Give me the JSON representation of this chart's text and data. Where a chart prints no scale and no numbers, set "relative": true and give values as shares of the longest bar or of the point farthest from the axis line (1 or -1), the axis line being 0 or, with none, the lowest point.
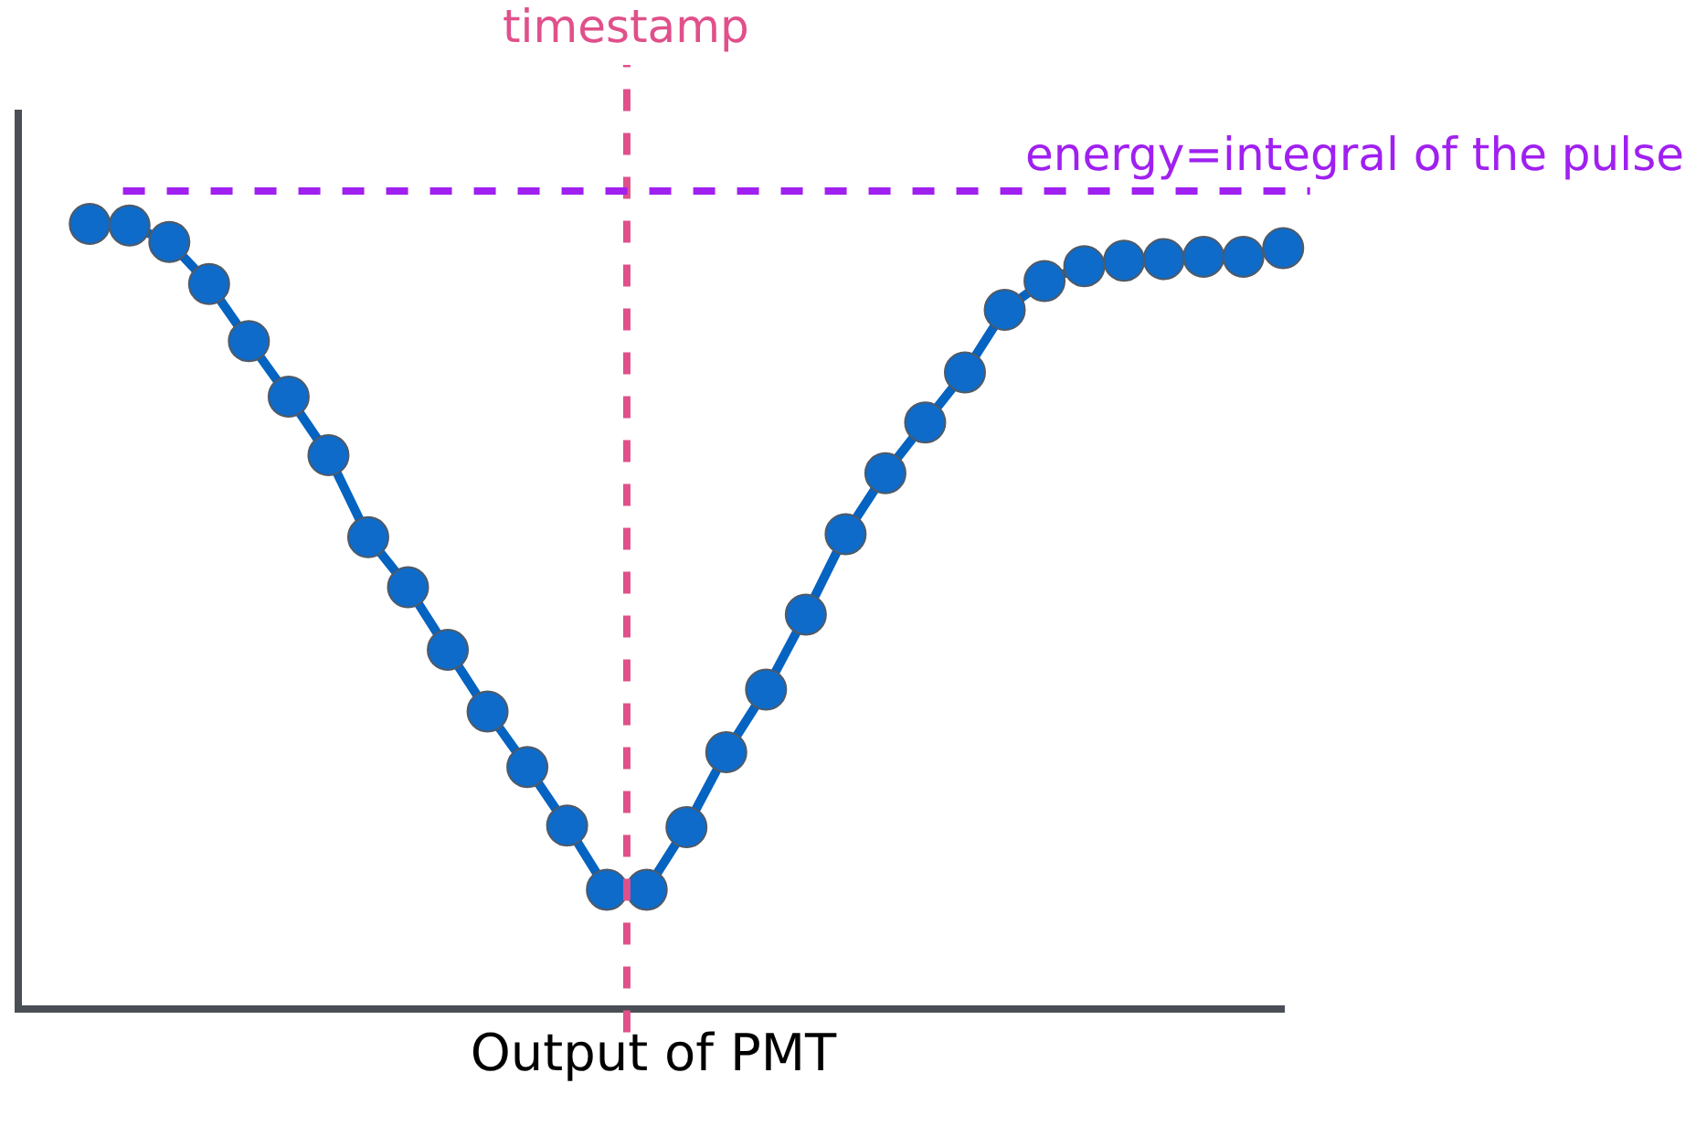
{
  "chart_data": {
    "type": "line",
    "relative": true,
    "xlabel": "Output of PMT",
    "tick_labels": false,
    "annotations": [
      "timestamp"
    ],
    "marker": "circle",
    "line_style": "solid",
    "categories": [
      null,
      null,
      null,
      null,
      null,
      null,
      null,
      null,
      null,
      null,
      null,
      null,
      null,
      null,
      null,
      null,
      null,
      null,
      null,
      null,
      null,
      null,
      null,
      null,
      null,
      null,
      null,
      null,
      null,
      null,
      null
    ],
    "series": [
      {
        "color": "#0563c1",
        "values": [
          1.0,
          0.998,
          0.977,
          0.923,
          0.85,
          0.779,
          0.704,
          0.599,
          0.535,
          0.455,
          0.376,
          0.305,
          0.23,
          0.148,
          0.148,
          0.228,
          0.324,
          0.404,
          0.5,
          0.603,
          0.681,
          0.746,
          0.81,
          0.89,
          0.927,
          0.946,
          0.953,
          0.955,
          0.958,
          0.958,
          0.969
        ]
      }
    ],
    "ref_lines": [
      {
        "axis": "y",
        "value": 1.042,
        "label": "energy=integral of the pulse",
        "color": "#a020f0",
        "line_style": "dashed"
      }
    ]
  }
}
